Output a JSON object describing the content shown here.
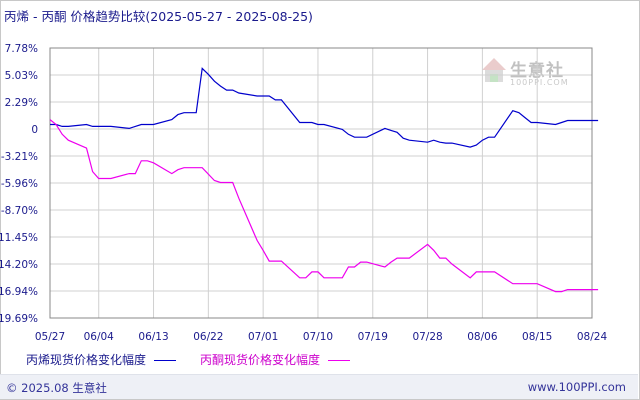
{
  "title": "丙烯 - 丙酮 价格趋势比较(2025-05-27 - 2025-08-25)",
  "watermark": {
    "text": "生意社",
    "url": "100PPI.COM"
  },
  "footer": {
    "copyright": "© 2025.08 生意社",
    "site": "www.100PPI.com"
  },
  "colors": {
    "propylene": "#0000cc",
    "acetone": "#ee00ee",
    "grid": "#d0d0d0",
    "axis": "#888888",
    "label": "#1a1a8c"
  },
  "chart_data": {
    "type": "line",
    "title": "丙烯 - 丙酮 价格趋势比较(2025-05-27 - 2025-08-25)",
    "y_unit": "%",
    "ylim": [
      -19.69,
      7.78
    ],
    "yticks": [
      "7.78%",
      "5.03%",
      "2.29%",
      "0",
      "-3.21%",
      "-5.96%",
      "-8.70%",
      "-11.45%",
      "-14.20%",
      "-16.94%",
      "-19.69%"
    ],
    "xticks": [
      "05/27",
      "06/04",
      "06/13",
      "06/22",
      "07/01",
      "07/10",
      "07/19",
      "07/28",
      "08/06",
      "08/15",
      "08/24"
    ],
    "grid": true,
    "legend_position": "bottom",
    "series": [
      {
        "name": "丙烯现货价格变化幅度",
        "color": "#0000cc",
        "points": [
          [
            "05/27",
            0
          ],
          [
            "05/28",
            0
          ],
          [
            "05/29",
            -0.2
          ],
          [
            "05/30",
            -0.2
          ],
          [
            "06/02",
            0.0
          ],
          [
            "06/03",
            -0.2
          ],
          [
            "06/04",
            -0.2
          ],
          [
            "06/05",
            -0.2
          ],
          [
            "06/06",
            -0.2
          ],
          [
            "06/09",
            -0.4
          ],
          [
            "06/10",
            -0.2
          ],
          [
            "06/11",
            0
          ],
          [
            "06/12",
            0
          ],
          [
            "06/13",
            0
          ],
          [
            "06/16",
            0.5
          ],
          [
            "06/17",
            1.0
          ],
          [
            "06/18",
            1.2
          ],
          [
            "06/19",
            1.2
          ],
          [
            "06/20",
            1.2
          ],
          [
            "06/21",
            5.7
          ],
          [
            "06/22",
            5.1
          ],
          [
            "06/23",
            4.4
          ],
          [
            "06/24",
            3.9
          ],
          [
            "06/25",
            3.5
          ],
          [
            "06/26",
            3.5
          ],
          [
            "06/27",
            3.2
          ],
          [
            "06/30",
            2.9
          ],
          [
            "07/01",
            2.9
          ],
          [
            "07/02",
            2.9
          ],
          [
            "07/03",
            2.5
          ],
          [
            "07/04",
            2.5
          ],
          [
            "07/07",
            0.2
          ],
          [
            "07/08",
            0.2
          ],
          [
            "07/09",
            0.2
          ],
          [
            "07/10",
            0
          ],
          [
            "07/11",
            0
          ],
          [
            "07/14",
            -0.5
          ],
          [
            "07/15",
            -1.0
          ],
          [
            "07/16",
            -1.3
          ],
          [
            "07/17",
            -1.3
          ],
          [
            "07/18",
            -1.3
          ],
          [
            "07/21",
            -0.4
          ],
          [
            "07/22",
            -0.6
          ],
          [
            "07/23",
            -0.8
          ],
          [
            "07/24",
            -1.4
          ],
          [
            "07/25",
            -1.6
          ],
          [
            "07/28",
            -1.8
          ],
          [
            "07/29",
            -1.6
          ],
          [
            "07/30",
            -1.8
          ],
          [
            "07/31",
            -1.9
          ],
          [
            "08/01",
            -1.9
          ],
          [
            "08/04",
            -2.3
          ],
          [
            "08/05",
            -2.1
          ],
          [
            "08/06",
            -1.6
          ],
          [
            "08/07",
            -1.3
          ],
          [
            "08/08",
            -1.3
          ],
          [
            "08/11",
            1.4
          ],
          [
            "08/12",
            1.2
          ],
          [
            "08/13",
            0.7
          ],
          [
            "08/14",
            0.2
          ],
          [
            "08/15",
            0.2
          ],
          [
            "08/18",
            0
          ],
          [
            "08/19",
            0.2
          ],
          [
            "08/20",
            0.4
          ],
          [
            "08/21",
            0.4
          ],
          [
            "08/22",
            0.4
          ],
          [
            "08/25",
            0.4
          ]
        ]
      },
      {
        "name": "丙酮现货价格变化幅度",
        "color": "#ee00ee",
        "points": [
          [
            "05/27",
            0.5
          ],
          [
            "05/28",
            0
          ],
          [
            "05/29",
            -1.0
          ],
          [
            "05/30",
            -1.6
          ],
          [
            "06/02",
            -2.4
          ],
          [
            "06/03",
            -4.8
          ],
          [
            "06/04",
            -5.5
          ],
          [
            "06/05",
            -5.5
          ],
          [
            "06/06",
            -5.5
          ],
          [
            "06/09",
            -5.0
          ],
          [
            "06/10",
            -5.0
          ],
          [
            "06/11",
            -3.7
          ],
          [
            "06/12",
            -3.7
          ],
          [
            "06/13",
            -3.9
          ],
          [
            "06/16",
            -5.0
          ],
          [
            "06/17",
            -4.6
          ],
          [
            "06/18",
            -4.4
          ],
          [
            "06/19",
            -4.4
          ],
          [
            "06/20",
            -4.4
          ],
          [
            "06/21",
            -4.4
          ],
          [
            "06/23",
            -5.7
          ],
          [
            "06/24",
            -5.9
          ],
          [
            "06/25",
            -5.9
          ],
          [
            "06/26",
            -5.9
          ],
          [
            "06/27",
            -7.5
          ],
          [
            "06/30",
            -11.8
          ],
          [
            "07/01",
            -12.8
          ],
          [
            "07/02",
            -13.9
          ],
          [
            "07/03",
            -13.9
          ],
          [
            "07/04",
            -13.9
          ],
          [
            "07/07",
            -15.6
          ],
          [
            "07/08",
            -15.6
          ],
          [
            "07/09",
            -15.0
          ],
          [
            "07/10",
            -15.0
          ],
          [
            "07/11",
            -15.6
          ],
          [
            "07/14",
            -15.6
          ],
          [
            "07/15",
            -14.5
          ],
          [
            "07/16",
            -14.5
          ],
          [
            "07/17",
            -14.0
          ],
          [
            "07/18",
            -14.0
          ],
          [
            "07/21",
            -14.5
          ],
          [
            "07/22",
            -14.0
          ],
          [
            "07/23",
            -13.6
          ],
          [
            "07/24",
            -13.6
          ],
          [
            "07/25",
            -13.6
          ],
          [
            "07/28",
            -12.2
          ],
          [
            "07/29",
            -12.8
          ],
          [
            "07/30",
            -13.6
          ],
          [
            "07/31",
            -13.6
          ],
          [
            "08/01",
            -14.2
          ],
          [
            "08/04",
            -15.6
          ],
          [
            "08/05",
            -15.0
          ],
          [
            "08/06",
            -15.0
          ],
          [
            "08/07",
            -15.0
          ],
          [
            "08/08",
            -15.0
          ],
          [
            "08/11",
            -16.2
          ],
          [
            "08/12",
            -16.2
          ],
          [
            "08/13",
            -16.2
          ],
          [
            "08/14",
            -16.2
          ],
          [
            "08/15",
            -16.2
          ],
          [
            "08/18",
            -17.0
          ],
          [
            "08/19",
            -17.0
          ],
          [
            "08/20",
            -16.8
          ],
          [
            "08/21",
            -16.8
          ],
          [
            "08/22",
            -16.8
          ],
          [
            "08/25",
            -16.8
          ]
        ]
      }
    ]
  }
}
